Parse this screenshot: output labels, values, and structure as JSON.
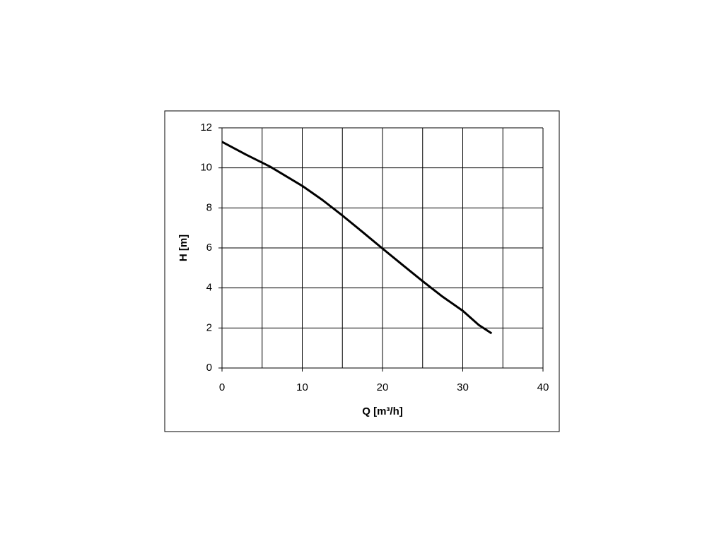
{
  "chart_data": {
    "type": "line",
    "xlabel": "Q [m³/h]",
    "ylabel": "H [m]",
    "x": [
      0,
      3,
      6,
      10,
      12.5,
      15,
      17.5,
      20,
      22.5,
      25,
      27.5,
      30,
      32,
      33.6
    ],
    "series": [
      {
        "color": "#000000",
        "values": [
          11.3,
          10.66,
          10.06,
          9.1,
          8.4,
          7.62,
          6.8,
          5.97,
          5.15,
          4.34,
          3.56,
          2.86,
          2.15,
          1.73
        ]
      }
    ],
    "xlim": [
      0,
      40
    ],
    "xticks": [
      0,
      10,
      20,
      30,
      40
    ],
    "x_minor_grid": [
      5,
      15,
      25,
      35
    ],
    "ylim": [
      0,
      12
    ],
    "yticks": [
      0,
      2,
      4,
      6,
      8,
      10,
      12
    ],
    "grid": true
  }
}
